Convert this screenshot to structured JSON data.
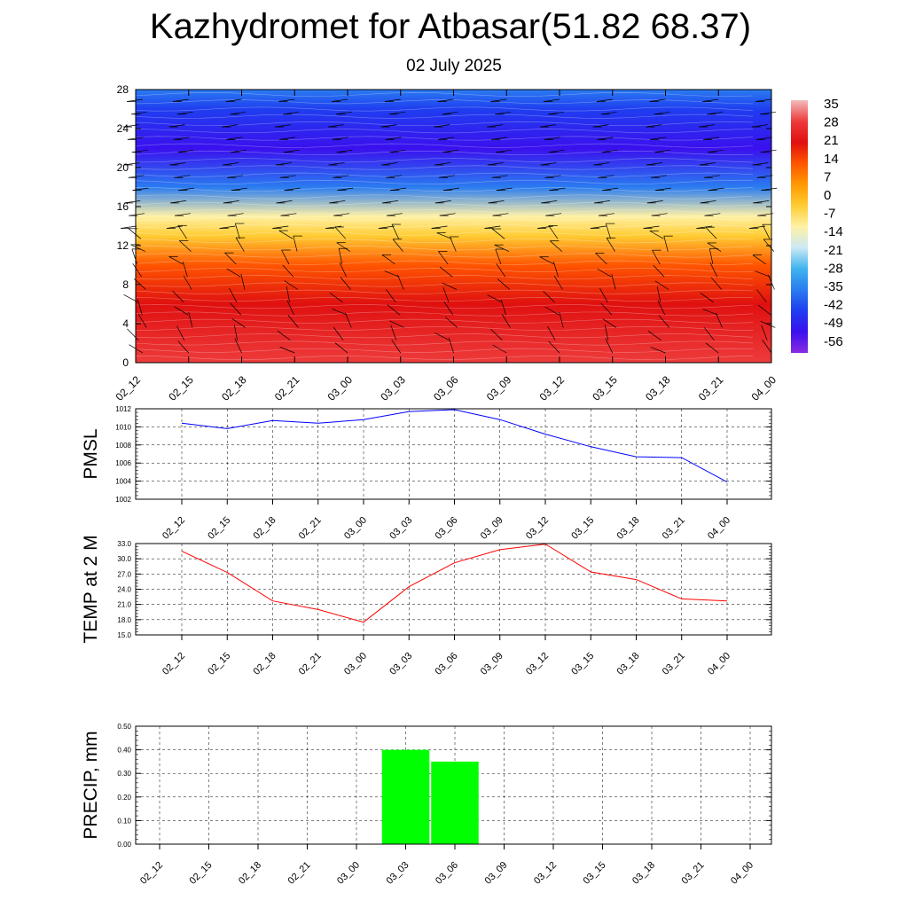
{
  "page": {
    "title": "Kazhydromet for Atbasar(51.82 68.37)",
    "subtitle": "02 July 2025"
  },
  "chart_data": [
    {
      "type": "heatmap",
      "id": "cross-section",
      "x": [
        "02_12",
        "02_15",
        "02_18",
        "02_21",
        "03_00",
        "03_03",
        "03_06",
        "03_09",
        "03_12",
        "03_15",
        "03_18",
        "03_21",
        "04_00"
      ],
      "ylim": [
        0,
        28
      ],
      "yticks": [
        "0",
        "4",
        "8",
        "12",
        "16",
        "20",
        "24",
        "28"
      ],
      "colorbar": {
        "labels": [
          "35",
          "28",
          "21",
          "14",
          "7",
          "0",
          "-7",
          "-14",
          "-21",
          "-28",
          "-35",
          "-42",
          "-49",
          "-56"
        ],
        "stops": [
          "#f2bcbc",
          "#ee3b3b",
          "#e01010",
          "#ff5500",
          "#ff9900",
          "#ffcc33",
          "#fff1a6",
          "#cce9f5",
          "#3fb4ee",
          "#2a7cf0",
          "#1f3ef0",
          "#3a10ee",
          "#8a2be2"
        ]
      },
      "temperature_band_by_height": [
        {
          "y": 0,
          "value": 30
        },
        {
          "y": 6,
          "value": 22
        },
        {
          "y": 10,
          "value": 10
        },
        {
          "y": 13,
          "value": 0
        },
        {
          "y": 15,
          "value": -14
        },
        {
          "y": 18,
          "value": -35
        },
        {
          "y": 22,
          "value": -56
        },
        {
          "y": 26,
          "value": -49
        },
        {
          "y": 28,
          "value": -42
        }
      ]
    },
    {
      "type": "line",
      "id": "pmsl",
      "ylabel": "PMSL",
      "categories": [
        "02_12",
        "02_15",
        "02_18",
        "02_21",
        "03_00",
        "03_03",
        "03_06",
        "03_09",
        "03_12",
        "03_15",
        "03_18",
        "03_21",
        "04_00"
      ],
      "values": [
        1010.4,
        1009.8,
        1010.7,
        1010.4,
        1010.8,
        1011.7,
        1011.9,
        1010.8,
        1009.2,
        1007.8,
        1006.7,
        1006.6,
        1003.9
      ],
      "ylim": [
        1002,
        1012
      ],
      "yticks": [
        "1002",
        "1004",
        "1006",
        "1008",
        "1010",
        "1012"
      ],
      "color": "#0000ff",
      "grid": true
    },
    {
      "type": "line",
      "id": "temp2m",
      "ylabel": "TEMP at 2 M",
      "categories": [
        "02_12",
        "02_15",
        "02_18",
        "02_21",
        "03_00",
        "03_03",
        "03_06",
        "03_09",
        "03_12",
        "03_15",
        "03_18",
        "03_21",
        "04_00"
      ],
      "values": [
        31.5,
        27.3,
        21.7,
        20.0,
        17.5,
        24.5,
        29.2,
        31.8,
        32.9,
        27.4,
        25.9,
        22.1,
        21.7
      ],
      "ylim": [
        15,
        33
      ],
      "yticks": [
        "15.0",
        "18.0",
        "21.0",
        "24.0",
        "27.0",
        "30.0",
        "33.0"
      ],
      "color": "#ff0000",
      "grid": true
    },
    {
      "type": "bar",
      "id": "precip",
      "ylabel": "PRECIP, mm",
      "categories": [
        "02_12",
        "02_15",
        "02_18",
        "02_21",
        "03_00",
        "03_03",
        "03_06",
        "03_09",
        "03_12",
        "03_15",
        "03_18",
        "03_21",
        "04_00"
      ],
      "values": [
        0,
        0,
        0,
        0,
        0,
        0.4,
        0.35,
        0,
        0,
        0,
        0,
        0,
        0
      ],
      "ylim": [
        0,
        0.5
      ],
      "yticks": [
        "0.00",
        "0.10",
        "0.20",
        "0.30",
        "0.40",
        "0.50"
      ],
      "color": "#00ff00",
      "grid": true
    }
  ]
}
